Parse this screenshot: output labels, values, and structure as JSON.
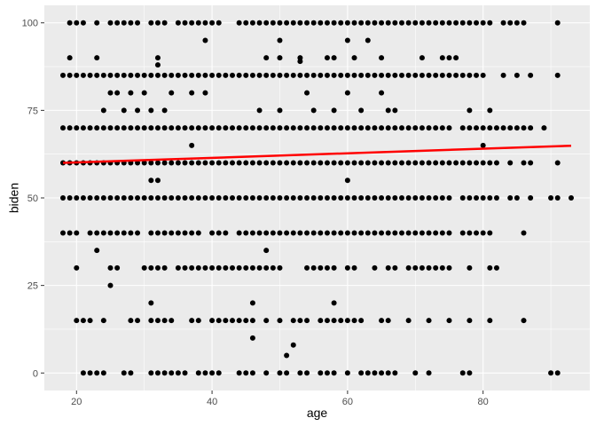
{
  "chart_data": {
    "type": "scatter",
    "title": "",
    "xlabel": "age",
    "ylabel": "biden",
    "xlim": [
      15.25,
      95.75
    ],
    "ylim": [
      -5,
      105
    ],
    "x_major_ticks": [
      20,
      40,
      60,
      80
    ],
    "x_minor_ticks": [
      30,
      50,
      70,
      90
    ],
    "y_major_ticks": [
      0,
      25,
      50,
      75,
      100
    ],
    "y_minor_ticks": [
      12.5,
      37.5,
      62.5,
      87.5
    ],
    "x_tick_labels": [
      "20",
      "40",
      "60",
      "80"
    ],
    "y_tick_labels": [
      "0",
      "25",
      "50",
      "75",
      "100"
    ],
    "grid": true,
    "legend": "none",
    "colors": {
      "panel": "#EBEBEB",
      "grid": "#FFFFFF",
      "points": "#000000",
      "trend": "#FF0000"
    },
    "trend_line": {
      "x": [
        18,
        93
      ],
      "y": [
        60.0,
        64.9
      ]
    },
    "points_by_value": [
      {
        "y": 100,
        "ages": [
          19,
          20,
          21,
          23,
          25,
          26,
          27,
          28,
          29,
          31,
          32,
          33,
          35,
          36,
          37,
          38,
          39,
          40,
          41,
          44,
          45,
          46,
          47,
          48,
          49,
          50,
          51,
          52,
          53,
          54,
          55,
          56,
          57,
          58,
          59,
          60,
          61,
          62,
          63,
          64,
          65,
          66,
          67,
          68,
          69,
          70,
          71,
          72,
          73,
          74,
          75,
          76,
          77,
          78,
          79,
          80,
          81,
          83,
          84,
          85,
          86,
          91
        ]
      },
      {
        "y": 95,
        "ages": [
          39,
          50,
          60,
          63
        ]
      },
      {
        "y": 90,
        "ages": [
          19,
          23,
          32,
          48,
          50,
          53,
          57,
          58,
          61,
          65,
          71,
          74,
          75,
          76
        ]
      },
      {
        "y": 89,
        "ages": [
          53
        ]
      },
      {
        "y": 88,
        "ages": [
          32
        ]
      },
      {
        "y": 85,
        "ages": [
          18,
          19,
          20,
          21,
          22,
          23,
          24,
          25,
          26,
          27,
          28,
          29,
          30,
          31,
          32,
          33,
          34,
          35,
          36,
          37,
          38,
          39,
          40,
          41,
          42,
          43,
          44,
          45,
          46,
          47,
          48,
          49,
          50,
          51,
          52,
          53,
          54,
          55,
          56,
          57,
          58,
          59,
          60,
          61,
          62,
          63,
          64,
          65,
          66,
          67,
          68,
          69,
          70,
          71,
          72,
          73,
          74,
          75,
          76,
          77,
          78,
          79,
          80,
          83,
          85,
          87,
          91
        ]
      },
      {
        "y": 80,
        "ages": [
          25,
          26,
          28,
          30,
          34,
          37,
          39,
          54,
          60,
          65
        ]
      },
      {
        "y": 75,
        "ages": [
          24,
          27,
          29,
          31,
          33,
          47,
          50,
          55,
          58,
          62,
          66,
          67,
          78,
          81
        ]
      },
      {
        "y": 70,
        "ages": [
          18,
          19,
          20,
          21,
          22,
          23,
          24,
          25,
          26,
          27,
          28,
          29,
          30,
          31,
          32,
          33,
          34,
          35,
          36,
          37,
          38,
          39,
          40,
          41,
          42,
          43,
          44,
          45,
          46,
          47,
          48,
          49,
          50,
          51,
          52,
          53,
          54,
          55,
          56,
          57,
          58,
          59,
          60,
          61,
          62,
          63,
          64,
          65,
          66,
          67,
          68,
          69,
          70,
          71,
          72,
          73,
          74,
          75,
          77,
          78,
          79,
          80,
          81,
          82,
          83,
          84,
          85,
          86,
          87,
          89
        ]
      },
      {
        "y": 65,
        "ages": [
          37,
          80
        ]
      },
      {
        "y": 60,
        "ages": [
          18,
          19,
          20,
          21,
          22,
          23,
          24,
          25,
          26,
          27,
          28,
          29,
          30,
          31,
          32,
          33,
          34,
          35,
          36,
          37,
          38,
          39,
          40,
          41,
          42,
          43,
          44,
          45,
          46,
          47,
          48,
          49,
          50,
          51,
          52,
          53,
          54,
          55,
          56,
          57,
          58,
          59,
          60,
          61,
          62,
          63,
          64,
          65,
          66,
          67,
          68,
          69,
          70,
          71,
          72,
          73,
          74,
          75,
          76,
          77,
          78,
          79,
          80,
          81,
          82,
          84,
          86,
          87,
          91
        ]
      },
      {
        "y": 55,
        "ages": [
          31,
          32,
          60
        ]
      },
      {
        "y": 50,
        "ages": [
          18,
          19,
          20,
          21,
          22,
          23,
          24,
          25,
          26,
          27,
          28,
          29,
          30,
          31,
          32,
          33,
          34,
          35,
          36,
          37,
          38,
          39,
          40,
          41,
          42,
          43,
          44,
          45,
          46,
          47,
          48,
          49,
          50,
          51,
          52,
          53,
          54,
          55,
          56,
          57,
          58,
          59,
          60,
          61,
          62,
          63,
          64,
          65,
          66,
          67,
          68,
          69,
          70,
          71,
          72,
          73,
          74,
          75,
          77,
          78,
          79,
          80,
          81,
          82,
          84,
          85,
          87,
          90,
          91,
          93
        ]
      },
      {
        "y": 40,
        "ages": [
          18,
          19,
          20,
          22,
          23,
          24,
          25,
          26,
          27,
          28,
          29,
          31,
          32,
          33,
          34,
          35,
          36,
          37,
          38,
          40,
          41,
          42,
          44,
          45,
          46,
          47,
          48,
          49,
          50,
          51,
          52,
          53,
          54,
          55,
          56,
          57,
          58,
          59,
          60,
          61,
          62,
          63,
          64,
          65,
          66,
          67,
          68,
          69,
          70,
          71,
          72,
          73,
          74,
          75,
          77,
          78,
          79,
          80,
          81,
          86
        ]
      },
      {
        "y": 35,
        "ages": [
          23,
          48
        ]
      },
      {
        "y": 30,
        "ages": [
          20,
          25,
          26,
          30,
          31,
          32,
          33,
          35,
          36,
          37,
          38,
          39,
          40,
          41,
          42,
          43,
          44,
          45,
          46,
          47,
          48,
          49,
          50,
          54,
          55,
          56,
          57,
          58,
          60,
          61,
          64,
          66,
          67,
          69,
          70,
          71,
          72,
          73,
          74,
          75,
          78,
          81,
          82
        ]
      },
      {
        "y": 25,
        "ages": [
          25
        ]
      },
      {
        "y": 20,
        "ages": [
          31,
          46,
          58
        ]
      },
      {
        "y": 15,
        "ages": [
          20,
          21,
          22,
          24,
          28,
          29,
          31,
          32,
          33,
          34,
          37,
          38,
          40,
          41,
          42,
          43,
          44,
          45,
          46,
          48,
          50,
          52,
          53,
          54,
          56,
          57,
          58,
          59,
          60,
          61,
          62,
          65,
          66,
          69,
          72,
          75,
          78,
          81,
          86
        ]
      },
      {
        "y": 10,
        "ages": [
          46
        ]
      },
      {
        "y": 8,
        "ages": [
          52
        ]
      },
      {
        "y": 5,
        "ages": [
          51
        ]
      },
      {
        "y": 0,
        "ages": [
          21,
          22,
          23,
          24,
          27,
          28,
          31,
          32,
          33,
          34,
          35,
          36,
          38,
          39,
          40,
          41,
          44,
          45,
          46,
          48,
          50,
          51,
          53,
          54,
          56,
          57,
          58,
          60,
          62,
          63,
          64,
          65,
          66,
          67,
          70,
          72,
          77,
          78,
          90,
          91
        ]
      }
    ]
  }
}
